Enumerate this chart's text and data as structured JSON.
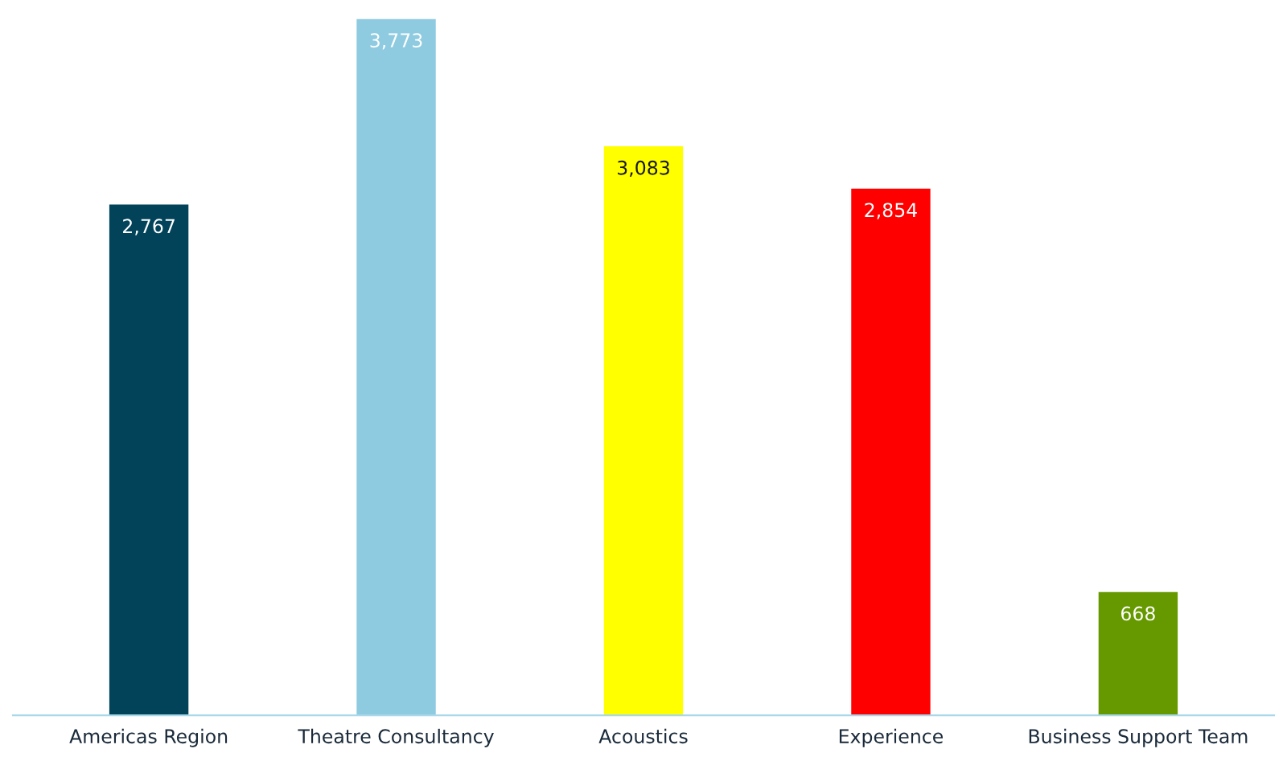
{
  "chart_data": {
    "type": "bar",
    "categories": [
      "Americas Region",
      "Theatre Consultancy",
      "Acoustics",
      "Experience",
      "Business Support Team"
    ],
    "values": [
      2767,
      3773,
      3083,
      2854,
      668
    ],
    "colors": [
      "#02435a",
      "#8ecae0",
      "#ffff00",
      "#ff0000",
      "#669900"
    ],
    "value_labels": [
      "2,767",
      "3,773",
      "3,083",
      "2,854",
      "668"
    ],
    "grid": false,
    "legend": false
  }
}
